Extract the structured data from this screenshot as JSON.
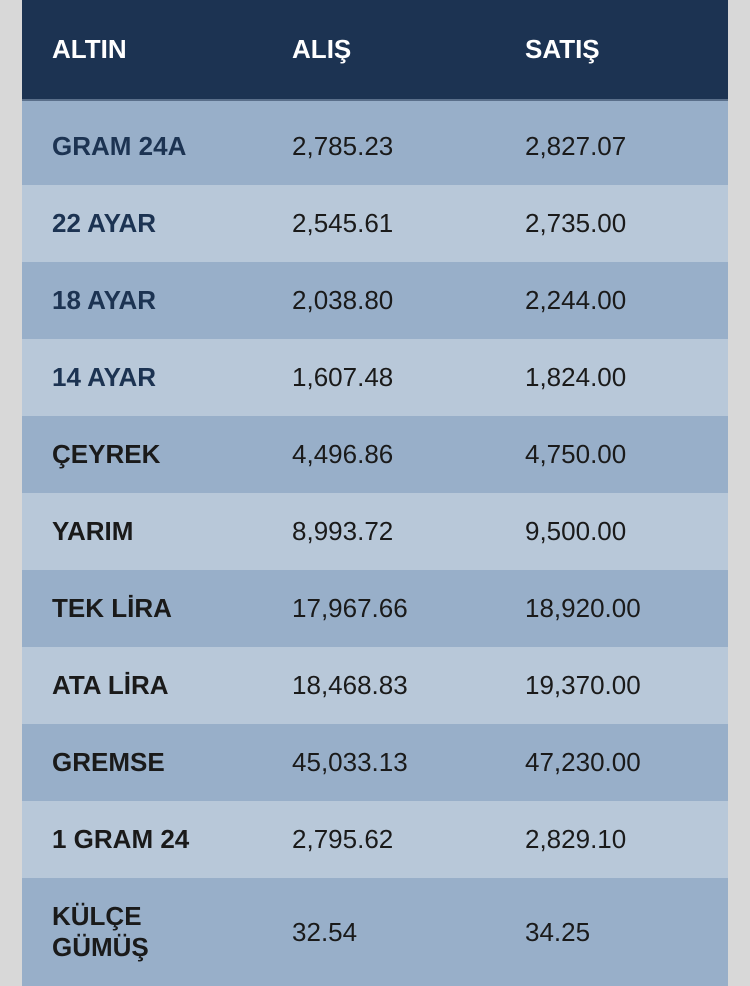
{
  "table": {
    "type": "table",
    "background_color_page": "#d8d8d8",
    "header": {
      "background_color": "#1c3352",
      "text_color": "#ffffff",
      "font_size": 26,
      "font_weight": "bold",
      "columns": [
        "ALTIN",
        "ALIŞ",
        "SATIŞ"
      ]
    },
    "row_colors": {
      "even": "#98afc9",
      "odd": "#b8c8d9"
    },
    "cell_font_size": 26,
    "name_cell_color": "#1c3352",
    "value_cell_color": "#1a1a1a",
    "rows": [
      {
        "name": "GRAM 24A",
        "buy": "2,785.23",
        "sell": "2,827.07"
      },
      {
        "name": "22 AYAR",
        "buy": "2,545.61",
        "sell": "2,735.00"
      },
      {
        "name": "18 AYAR",
        "buy": "2,038.80",
        "sell": "2,244.00"
      },
      {
        "name": "14 AYAR",
        "buy": "1,607.48",
        "sell": "1,824.00"
      },
      {
        "name": "ÇEYREK",
        "buy": "4,496.86",
        "sell": "4,750.00"
      },
      {
        "name": "YARIM",
        "buy": "8,993.72",
        "sell": "9,500.00"
      },
      {
        "name": "TEK LİRA",
        "buy": "17,967.66",
        "sell": "18,920.00"
      },
      {
        "name": "ATA LİRA",
        "buy": "18,468.83",
        "sell": "19,370.00"
      },
      {
        "name": "GREMSE",
        "buy": "45,033.13",
        "sell": "47,230.00"
      },
      {
        "name": "1 GRAM 24",
        "buy": "2,795.62",
        "sell": "2,829.10"
      },
      {
        "name": "KÜLÇE GÜMÜŞ",
        "buy": "32.54",
        "sell": "34.25"
      }
    ]
  }
}
